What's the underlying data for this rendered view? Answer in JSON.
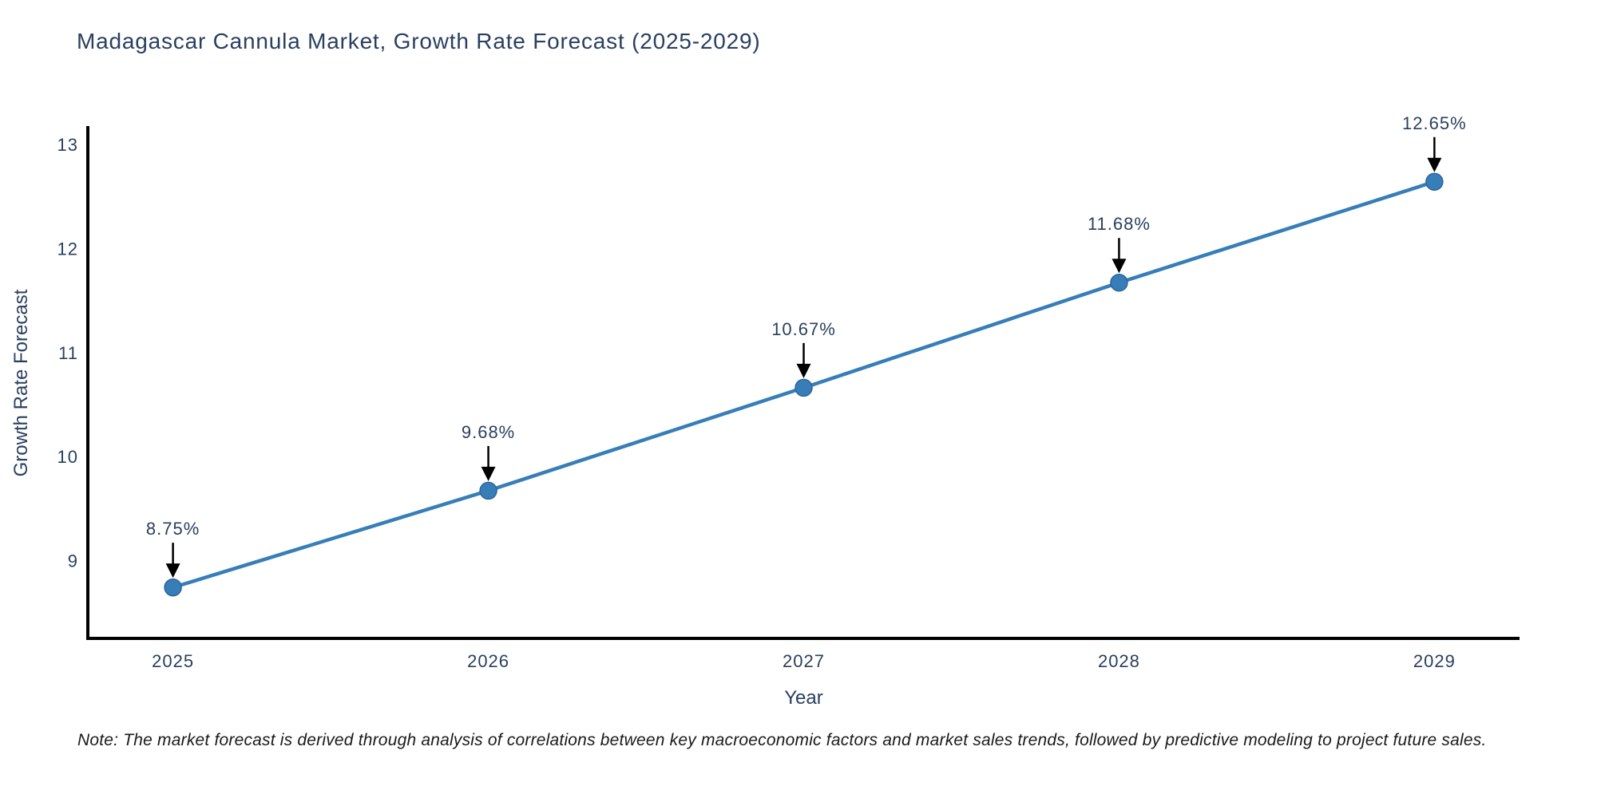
{
  "title": "Madagascar Cannula Market, Growth Rate Forecast (2025-2029)",
  "footnote": "Note: The market forecast is derived through analysis of correlations between key macroeconomic factors and market sales trends, followed by predictive modeling to project future sales.",
  "chart_data": {
    "type": "line",
    "title": "Madagascar Cannula Market, Growth Rate Forecast (2025-2029)",
    "xlabel": "Year",
    "ylabel": "Growth Rate Forecast",
    "x": [
      2025,
      2026,
      2027,
      2028,
      2029
    ],
    "y": [
      8.75,
      9.68,
      10.67,
      11.68,
      12.65
    ],
    "point_labels": [
      "8.75%",
      "9.68%",
      "10.67%",
      "11.68%",
      "12.65%"
    ],
    "x_tick_labels": [
      "2025",
      "2026",
      "2027",
      "2028",
      "2029"
    ],
    "y_ticks": [
      9,
      10,
      11,
      12,
      13
    ],
    "xlim": [
      2024.73,
      2029.27
    ],
    "ylim": [
      8.26,
      13.17
    ],
    "grid": false,
    "legend": "none",
    "line_color": "#377eb8",
    "marker_color": "#377eb8",
    "marker_edge_color": "#2c659b",
    "arrow_color": "#000000",
    "axis_color": "#000000",
    "text_color": "#2a3f5f"
  }
}
